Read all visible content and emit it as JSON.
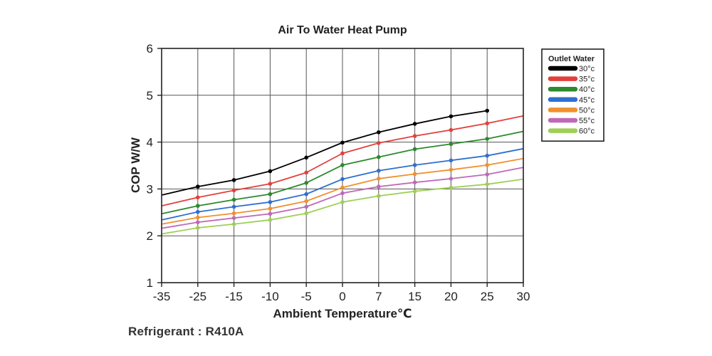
{
  "footnote": "Refrigerant : R410A",
  "chart_data": {
    "type": "line",
    "title": "Air To Water Heat Pump",
    "xlabel": "Ambient Temperature℃",
    "ylabel": "COP W/W",
    "ylim": [
      1,
      6
    ],
    "yticks": [
      1,
      2,
      3,
      4,
      5,
      6
    ],
    "categories": [
      "-35",
      "-25",
      "-15",
      "-10",
      "-5",
      "0",
      "7",
      "15",
      "20",
      "25",
      "30"
    ],
    "grid": true,
    "legend": {
      "title": "Outlet Water",
      "position": "right"
    },
    "series": [
      {
        "name": "30°c",
        "color": "#000000",
        "values": [
          2.87,
          3.05,
          3.19,
          3.38,
          3.67,
          3.99,
          4.21,
          4.39,
          4.55,
          4.67,
          null
        ]
      },
      {
        "name": "35°c",
        "color": "#e2403b",
        "values": [
          2.64,
          2.82,
          2.97,
          3.11,
          3.35,
          3.76,
          3.98,
          4.13,
          4.26,
          4.4,
          4.56
        ]
      },
      {
        "name": "40°c",
        "color": "#2d8a2d",
        "values": [
          2.47,
          2.64,
          2.77,
          2.89,
          3.13,
          3.51,
          3.68,
          3.85,
          3.96,
          4.07,
          4.23
        ]
      },
      {
        "name": "45°c",
        "color": "#2f6fd1",
        "values": [
          2.34,
          2.51,
          2.62,
          2.72,
          2.89,
          3.21,
          3.39,
          3.51,
          3.61,
          3.71,
          3.86
        ]
      },
      {
        "name": "50°c",
        "color": "#f0902e",
        "values": [
          2.25,
          2.39,
          2.48,
          2.58,
          2.74,
          3.03,
          3.22,
          3.32,
          3.41,
          3.51,
          3.65
        ]
      },
      {
        "name": "55°c",
        "color": "#c068b8",
        "values": [
          2.16,
          2.29,
          2.38,
          2.47,
          2.62,
          2.91,
          3.05,
          3.14,
          3.22,
          3.31,
          3.46
        ]
      },
      {
        "name": "60°c",
        "color": "#9fcf55",
        "values": [
          2.04,
          2.17,
          2.25,
          2.34,
          2.48,
          2.72,
          2.85,
          2.95,
          3.03,
          3.1,
          3.21
        ]
      }
    ]
  }
}
